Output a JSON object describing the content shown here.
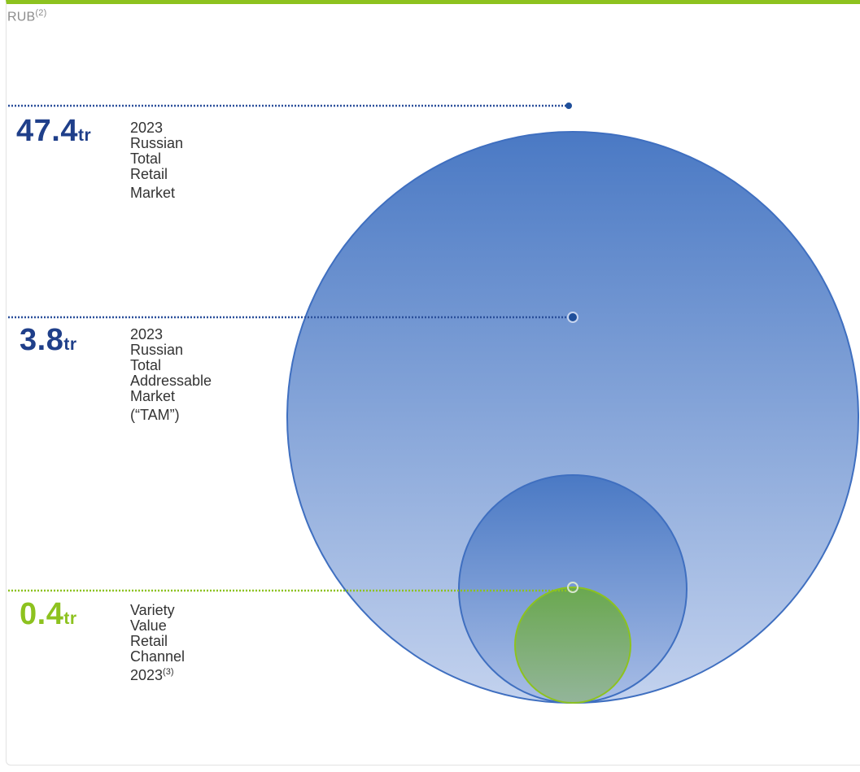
{
  "unit": {
    "label": "RUB",
    "footnote": "(2)"
  },
  "colors": {
    "accent_green": "#8dc21f",
    "navy": "#1f3f8a",
    "bubble_blue_top": "#4a79c4",
    "bubble_blue_bottom": "#c3d2ee",
    "bubble_green": "#6aa84f"
  },
  "chart_data": {
    "type": "bubble",
    "series": [
      {
        "value": 47.4,
        "suffix": "tr",
        "label": "2023 Russian\nTotal Retail Market",
        "footnote": ""
      },
      {
        "value": 3.8,
        "suffix": "tr",
        "label": "2023 Russian Total\nAddressable Market\n(“TAM”)",
        "footnote": ""
      },
      {
        "value": 0.4,
        "suffix": "tr",
        "label": "Variety Value Retail\nChannel 2023",
        "footnote": "(3)"
      }
    ]
  }
}
